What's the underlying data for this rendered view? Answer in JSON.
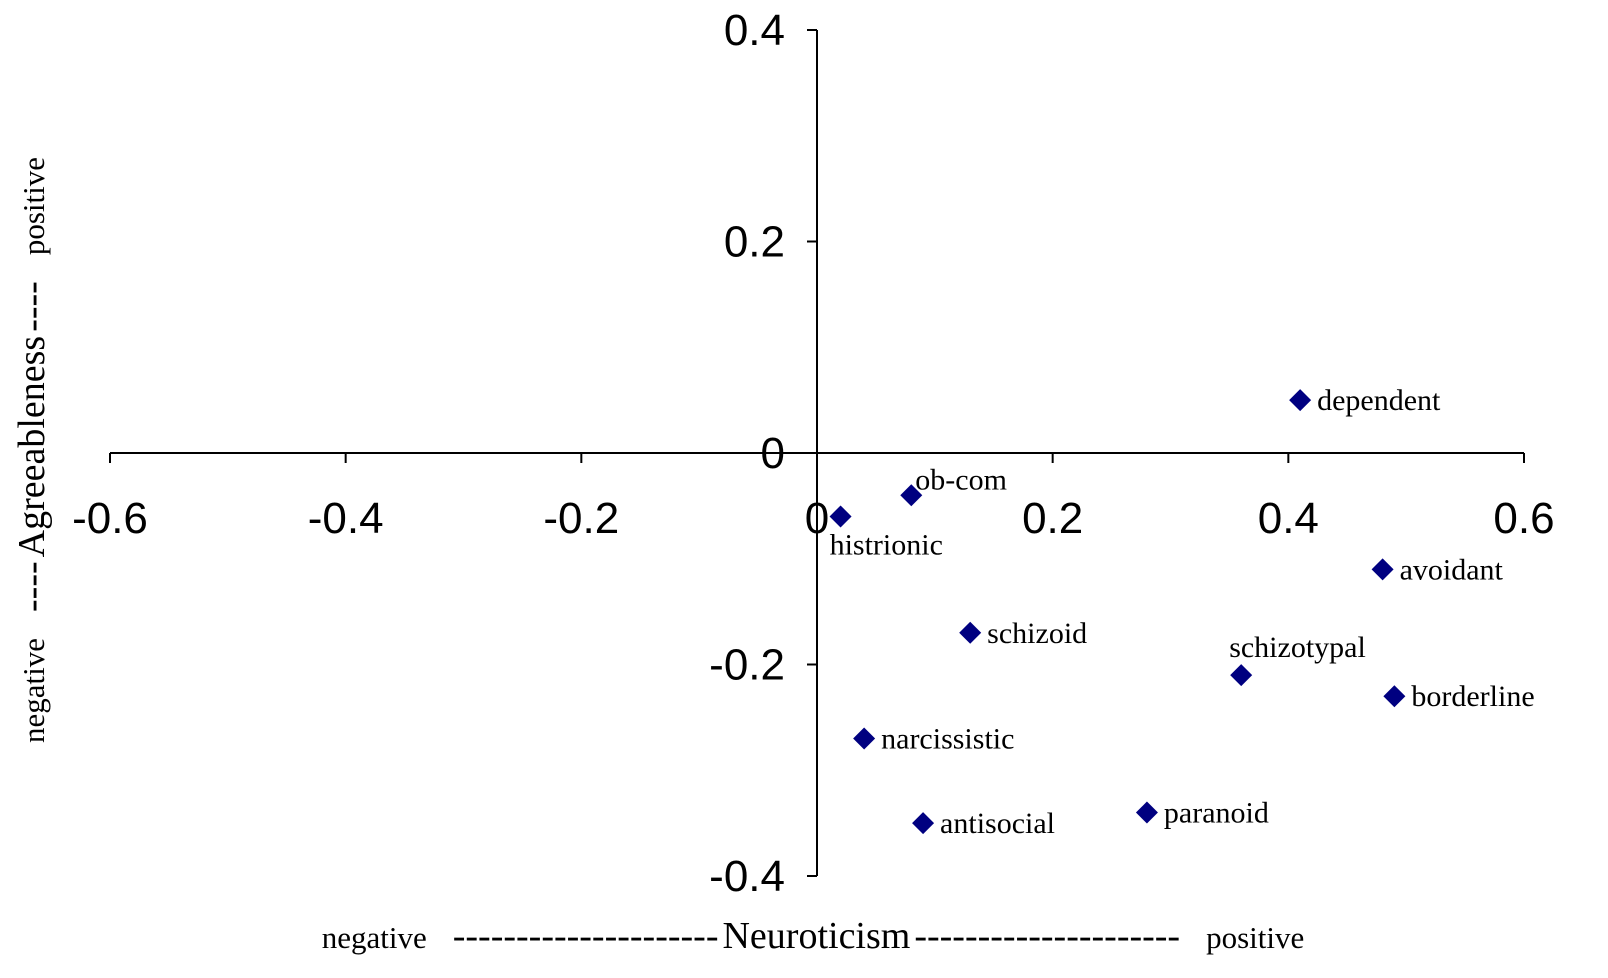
{
  "chart_data": {
    "type": "scatter",
    "title": "",
    "xlabel": "negative ---------------------Neuroticism--------------------- positive",
    "xlabel_parts": {
      "left": "negative",
      "dashes_left": "---------------------",
      "center": "Neuroticism",
      "dashes_right": "---------------------",
      "right": "positive"
    },
    "ylabel": "negative ----Agreeableness---- positive",
    "ylabel_parts": {
      "bottom": "negative",
      "dashes_left": "----",
      "center": "Agreeableness",
      "dashes_right": "----",
      "top": "positive"
    },
    "xlim": [
      -0.6,
      0.6
    ],
    "ylim": [
      -0.4,
      0.4
    ],
    "x_ticks": [
      -0.6,
      -0.4,
      -0.2,
      0,
      0.2,
      0.4,
      0.6
    ],
    "x_tick_labels": [
      "-0.6",
      "-0.4",
      "-0.2",
      "0",
      "0.2",
      "0.4",
      "0.6"
    ],
    "y_ticks": [
      0.4,
      0.2,
      0,
      -0.2,
      -0.4
    ],
    "y_tick_labels": [
      "0.4",
      "0.2",
      "0",
      "-0.2",
      "-0.4"
    ],
    "grid": false,
    "axes_cross_at_origin": true,
    "marker": "diamond",
    "marker_color": "#000080",
    "points": [
      {
        "label": "dependent",
        "x": 0.41,
        "y": 0.05,
        "label_position": "right"
      },
      {
        "label": "ob-com",
        "x": 0.08,
        "y": -0.04,
        "label_position": "above-right"
      },
      {
        "label": "histrionic",
        "x": 0.02,
        "y": -0.06,
        "label_position": "below"
      },
      {
        "label": "avoidant",
        "x": 0.48,
        "y": -0.11,
        "label_position": "right"
      },
      {
        "label": "schizoid",
        "x": 0.13,
        "y": -0.17,
        "label_position": "right"
      },
      {
        "label": "schizotypal",
        "x": 0.36,
        "y": -0.21,
        "label_position": "above"
      },
      {
        "label": "borderline",
        "x": 0.49,
        "y": -0.23,
        "label_position": "right"
      },
      {
        "label": "narcissistic",
        "x": 0.04,
        "y": -0.27,
        "label_position": "right"
      },
      {
        "label": "antisocial",
        "x": 0.09,
        "y": -0.35,
        "label_position": "right"
      },
      {
        "label": "paranoid",
        "x": 0.28,
        "y": -0.34,
        "label_position": "right"
      }
    ]
  }
}
